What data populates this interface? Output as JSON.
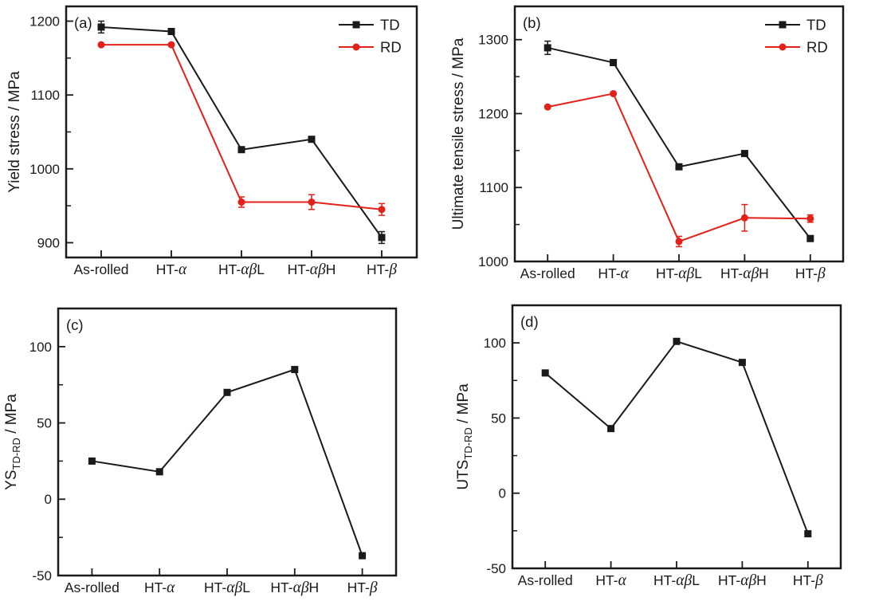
{
  "page": {
    "background": "#ffffff",
    "description": "Four-panel line chart figure of tensile properties vs heat-treatment condition"
  },
  "colors": {
    "black": "#1a1a1a",
    "red": "#e32119"
  },
  "legend_labels": {
    "td": "TD",
    "rd": "RD"
  },
  "chart_data": [
    {
      "id": "a",
      "type": "line",
      "panel_label": "(a)",
      "ylabel": {
        "pre": "Yield stress / MPa",
        "sub": "",
        "post": ""
      },
      "xlabel": "",
      "categories": [
        "As-rolled",
        "HT-α",
        "HT-αβL",
        "HT-αβH",
        "HT-β"
      ],
      "ylim": [
        880,
        1220
      ],
      "yticks": [
        900,
        1000,
        1100,
        1200
      ],
      "minor_tick_step": 50,
      "grid": false,
      "legend": {
        "show": true,
        "position": "top-right",
        "entries": [
          "TD",
          "RD"
        ]
      },
      "series": [
        {
          "name": "TD",
          "color": "#1a1a1a",
          "marker": "square",
          "values": [
            1192,
            1186,
            1026,
            1040,
            907
          ],
          "errors": [
            8,
            0,
            0,
            0,
            8
          ]
        },
        {
          "name": "RD",
          "color": "#e32119",
          "marker": "circle",
          "values": [
            1168,
            1168,
            955,
            955,
            945
          ],
          "errors": [
            0,
            0,
            7,
            10,
            8
          ]
        }
      ]
    },
    {
      "id": "b",
      "type": "line",
      "panel_label": "(b)",
      "ylabel": {
        "pre": "Ultimate tensile stress / MPa",
        "sub": "",
        "post": ""
      },
      "xlabel": "",
      "categories": [
        "As-rolled",
        "HT-α",
        "HT-αβL",
        "HT-αβH",
        "HT-β"
      ],
      "ylim": [
        1000,
        1345
      ],
      "yticks": [
        1000,
        1100,
        1200,
        1300
      ],
      "minor_tick_step": 50,
      "grid": false,
      "legend": {
        "show": true,
        "position": "top-right",
        "entries": [
          "TD",
          "RD"
        ]
      },
      "series": [
        {
          "name": "TD",
          "color": "#1a1a1a",
          "marker": "square",
          "values": [
            1289,
            1269,
            1128,
            1146,
            1031
          ],
          "errors": [
            9,
            0,
            0,
            0,
            0
          ]
        },
        {
          "name": "RD",
          "color": "#e32119",
          "marker": "circle",
          "values": [
            1209,
            1227,
            1027,
            1059,
            1058
          ],
          "errors": [
            0,
            0,
            7,
            18,
            5
          ]
        }
      ]
    },
    {
      "id": "c",
      "type": "line",
      "panel_label": "(c)",
      "ylabel": {
        "pre": "YS",
        "sub": "TD-RD",
        "post": " / MPa"
      },
      "xlabel": "",
      "categories": [
        "As-rolled",
        "HT-α",
        "HT-αβL",
        "HT-αβH",
        "HT-β"
      ],
      "ylim": [
        -50,
        125
      ],
      "yticks": [
        -50,
        0,
        50,
        100
      ],
      "minor_tick_step": 25,
      "grid": false,
      "legend": {
        "show": false,
        "position": "",
        "entries": []
      },
      "series": [
        {
          "name": "YS TD-RD",
          "color": "#1a1a1a",
          "marker": "square",
          "values": [
            25,
            18,
            70,
            85,
            -37
          ],
          "errors": [
            0,
            0,
            0,
            0,
            0
          ]
        }
      ]
    },
    {
      "id": "d",
      "type": "line",
      "panel_label": "(d)",
      "ylabel": {
        "pre": "UTS",
        "sub": "TD-RD",
        "post": " / MPa"
      },
      "xlabel": "",
      "categories": [
        "As-rolled",
        "HT-α",
        "HT-αβL",
        "HT-αβH",
        "HT-β"
      ],
      "ylim": [
        -50,
        125
      ],
      "yticks": [
        -50,
        0,
        50,
        100
      ],
      "minor_tick_step": 25,
      "grid": false,
      "legend": {
        "show": false,
        "position": "",
        "entries": []
      },
      "series": [
        {
          "name": "UTS TD-RD",
          "color": "#1a1a1a",
          "marker": "square",
          "values": [
            80,
            43,
            101,
            87,
            -27
          ],
          "errors": [
            0,
            0,
            0,
            0,
            0
          ]
        }
      ]
    }
  ]
}
